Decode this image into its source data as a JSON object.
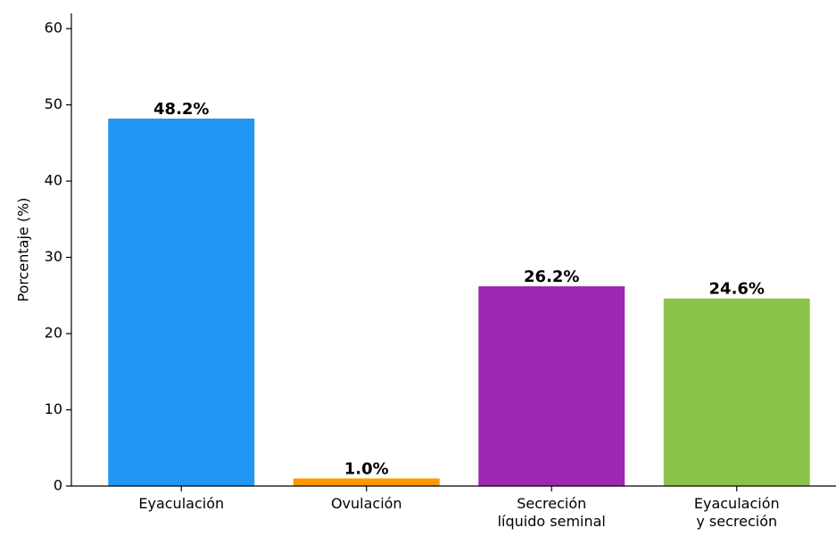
{
  "chart_data": {
    "type": "bar",
    "y_label": "Porcentaje (%)",
    "categories": [
      "Eyaculación",
      "Ovulación",
      "Secreción\nlíquido seminal",
      "Eyaculación\ny secreción"
    ],
    "values": [
      48.2,
      1.0,
      26.2,
      24.6
    ],
    "value_labels": [
      "48.2%",
      "1.0%",
      "26.2%",
      "24.6%"
    ],
    "colors": [
      "#2196f3",
      "#ff9800",
      "#9c27b0",
      "#8bc34a"
    ],
    "ylim": [
      0,
      62
    ],
    "yticks": [
      0,
      10,
      20,
      30,
      40,
      50,
      60
    ],
    "grid": false
  }
}
